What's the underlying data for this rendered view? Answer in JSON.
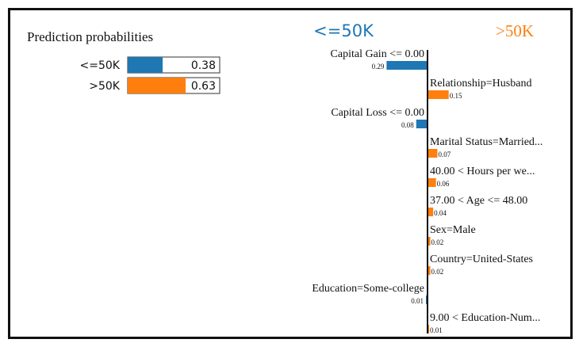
{
  "colors": {
    "negative": "#1f77b4",
    "positive": "#ff7f0e",
    "axis": "#111111",
    "border": "#111111"
  },
  "probabilities": {
    "title": "Prediction probabilities",
    "rows": [
      {
        "label": "<=50K",
        "value": 0.38,
        "display": "0.38",
        "color": "#1f77b4"
      },
      {
        "label": ">50K",
        "value": 0.63,
        "display": "0.63",
        "color": "#ff7f0e"
      }
    ]
  },
  "chart_data": {
    "type": "bar",
    "orientation": "horizontal",
    "class_labels": {
      "negative": "<=50K",
      "positive": ">50K"
    },
    "features": [
      {
        "label": "Capital Gain <= 0.00",
        "value": -0.29,
        "display": "0.29"
      },
      {
        "label": "Relationship=Husband",
        "value": 0.15,
        "display": "0.15"
      },
      {
        "label": "Capital Loss <= 0.00",
        "value": -0.08,
        "display": "0.08"
      },
      {
        "label": "Marital Status=Married...",
        "value": 0.07,
        "display": "0.07"
      },
      {
        "label": "40.00 < Hours per we...",
        "value": 0.06,
        "display": "0.06"
      },
      {
        "label": "37.00 < Age <= 48.00",
        "value": 0.04,
        "display": "0.04"
      },
      {
        "label": "Sex=Male",
        "value": 0.02,
        "display": "0.02"
      },
      {
        "label": "Country=United-States",
        "value": 0.02,
        "display": "0.02"
      },
      {
        "label": "Education=Some-college",
        "value": -0.01,
        "display": "0.01"
      },
      {
        "label": "9.00 < Education-Num...",
        "value": 0.01,
        "display": "0.01"
      }
    ]
  }
}
